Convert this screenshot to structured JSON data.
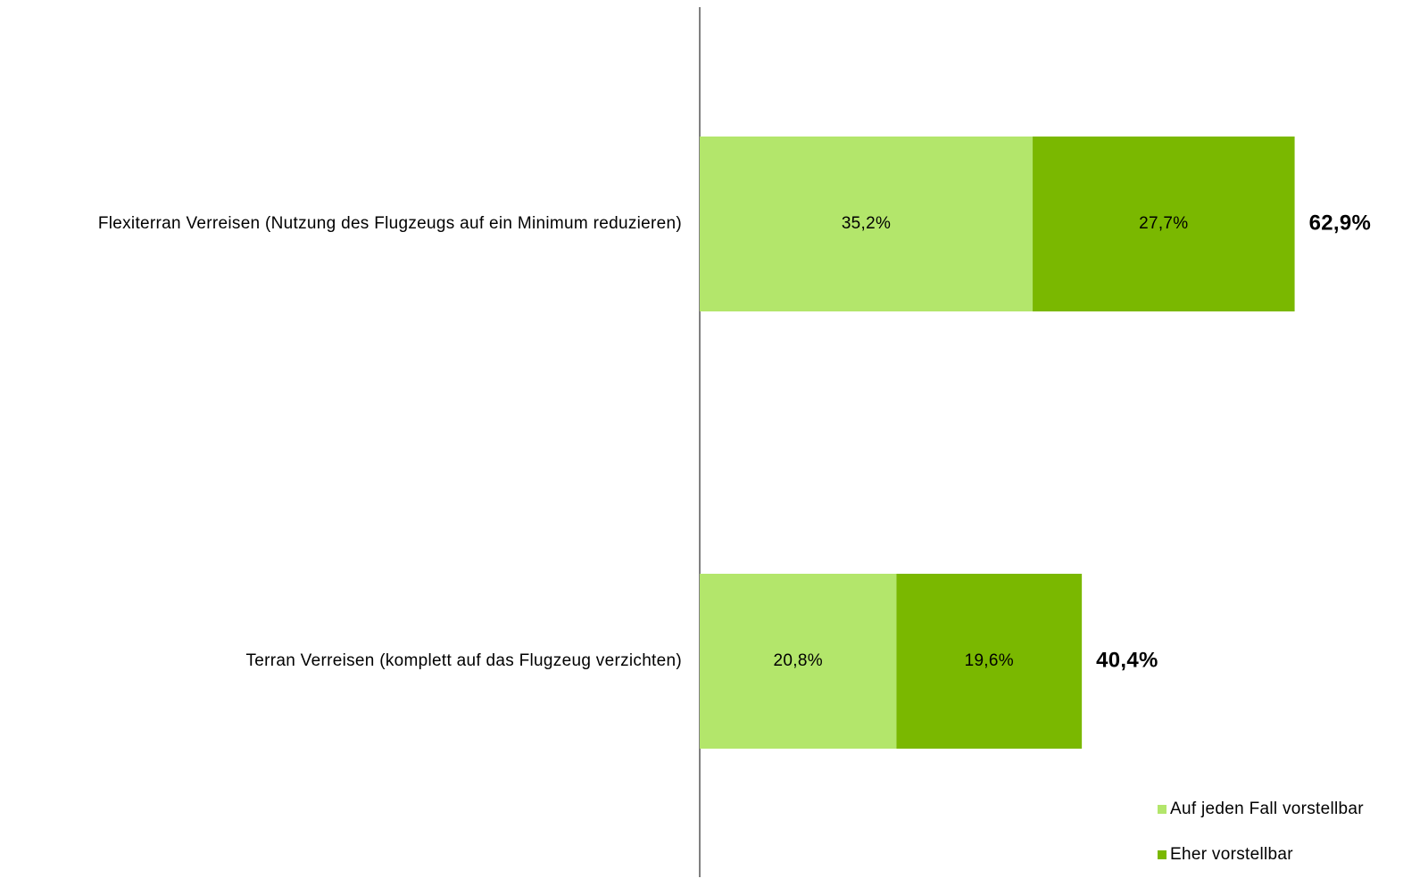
{
  "chart_data": {
    "type": "stacked-barh",
    "categories": [
      "Flexiterran Verreisen (Nutzung des Flugzeugs auf ein Minimum reduzieren)",
      "Terran Verreisen (komplett auf das Flugzeug verzichten)"
    ],
    "series": [
      {
        "name": "Auf jeden Fall vorstellbar",
        "color": "#b3e66b",
        "values": [
          35.2,
          20.8
        ],
        "value_labels": [
          "35,2%",
          "20,8%"
        ]
      },
      {
        "name": "Eher vorstellbar",
        "color": "#7ab800",
        "values": [
          27.7,
          19.6
        ],
        "value_labels": [
          "27,7%",
          "19,6%"
        ]
      }
    ],
    "totals": [
      62.9,
      40.4
    ],
    "total_labels": [
      "62,9%",
      "40,4%"
    ],
    "xlim": [
      0,
      77
    ],
    "legend": "lower right"
  }
}
